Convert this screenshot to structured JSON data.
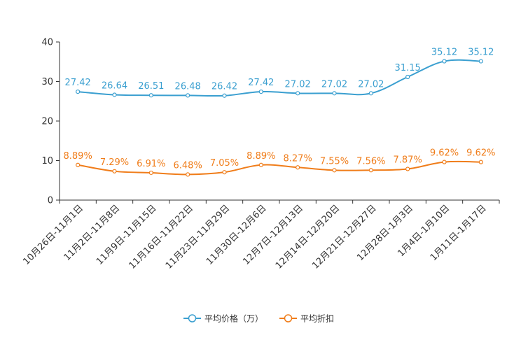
{
  "chart_data": {
    "type": "line",
    "categories": [
      "10月26日-11月1日",
      "11月2日-11月8日",
      "11月9日-11月15日",
      "11月16日-11月22日",
      "11月23日-11月29日",
      "11月30日-12月6日",
      "12月7日-12月13日",
      "12月14日-12月20日",
      "12月21日-12月27日",
      "12月28日-1月3日",
      "1月4日-1月10日",
      "1月11日-1月17日"
    ],
    "ylim": [
      0,
      40
    ],
    "yticks": [
      0,
      10,
      20,
      30,
      40
    ],
    "series": [
      {
        "name": "平均价格（万）",
        "color": "#3a9fd0",
        "values": [
          27.42,
          26.64,
          26.51,
          26.48,
          26.42,
          27.42,
          27.02,
          27.02,
          27.02,
          31.15,
          35.12,
          35.12
        ],
        "labels": [
          "27.42",
          "26.64",
          "26.51",
          "26.48",
          "26.42",
          "27.42",
          "27.02",
          "27.02",
          "27.02",
          "31.15",
          "35.12",
          "35.12"
        ]
      },
      {
        "name": "平均折扣",
        "color": "#f07d1a",
        "values": [
          8.89,
          7.29,
          6.91,
          6.48,
          7.05,
          8.89,
          8.27,
          7.55,
          7.56,
          7.87,
          9.62,
          9.62
        ],
        "labels": [
          "8.89%",
          "7.29%",
          "6.91%",
          "6.48%",
          "7.05%",
          "8.89%",
          "8.27%",
          "7.55%",
          "7.56%",
          "7.87%",
          "9.62%",
          "9.62%"
        ]
      }
    ],
    "title": "",
    "xlabel": "",
    "ylabel": "",
    "legend_position": "bottom-center"
  }
}
